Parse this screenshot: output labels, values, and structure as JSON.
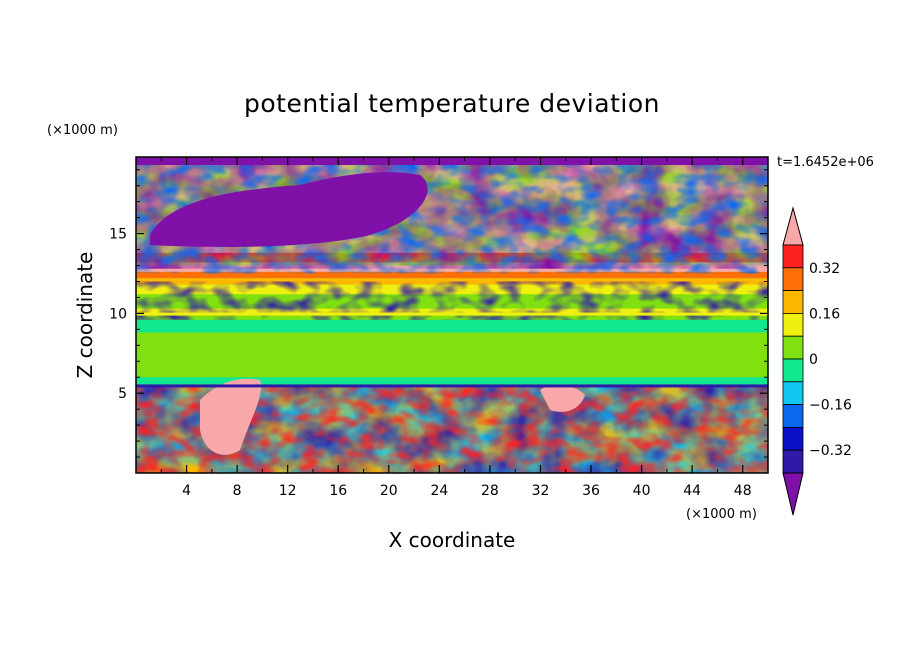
{
  "chart_data": {
    "type": "heatmap",
    "title": "potential temperature deviation",
    "xlabel": "X coordinate",
    "ylabel": "Z coordinate",
    "x_unit_label": "(×1000 m)",
    "y_unit_label": "(×1000 m)",
    "time_label": "t=1.6452e+06",
    "xlim": [
      0,
      50
    ],
    "ylim": [
      0,
      19.8
    ],
    "x_ticks": [
      4,
      8,
      12,
      16,
      20,
      24,
      28,
      32,
      36,
      40,
      44,
      48
    ],
    "y_ticks": [
      5,
      10,
      15
    ],
    "colorbar": {
      "levels": [
        -0.4,
        -0.32,
        -0.24,
        -0.16,
        -0.08,
        0,
        0.08,
        0.16,
        0.24,
        0.32,
        0.4
      ],
      "tick_labels": [
        "0.32",
        "0.16",
        "0",
        "−0.16",
        "−0.32"
      ],
      "tick_values": [
        0.32,
        0.16,
        0,
        -0.16,
        -0.32
      ],
      "colors": [
        "#7f10a8",
        "#2f1aa8",
        "#0a10c8",
        "#0a68f0",
        "#10c8f0",
        "#12e890",
        "#80e010",
        "#f0f010",
        "#ffb800",
        "#ff7008",
        "#ff2020",
        "#f8a8a8"
      ],
      "extend": "both"
    },
    "colormap": "rainbow",
    "legend_position": "right"
  }
}
